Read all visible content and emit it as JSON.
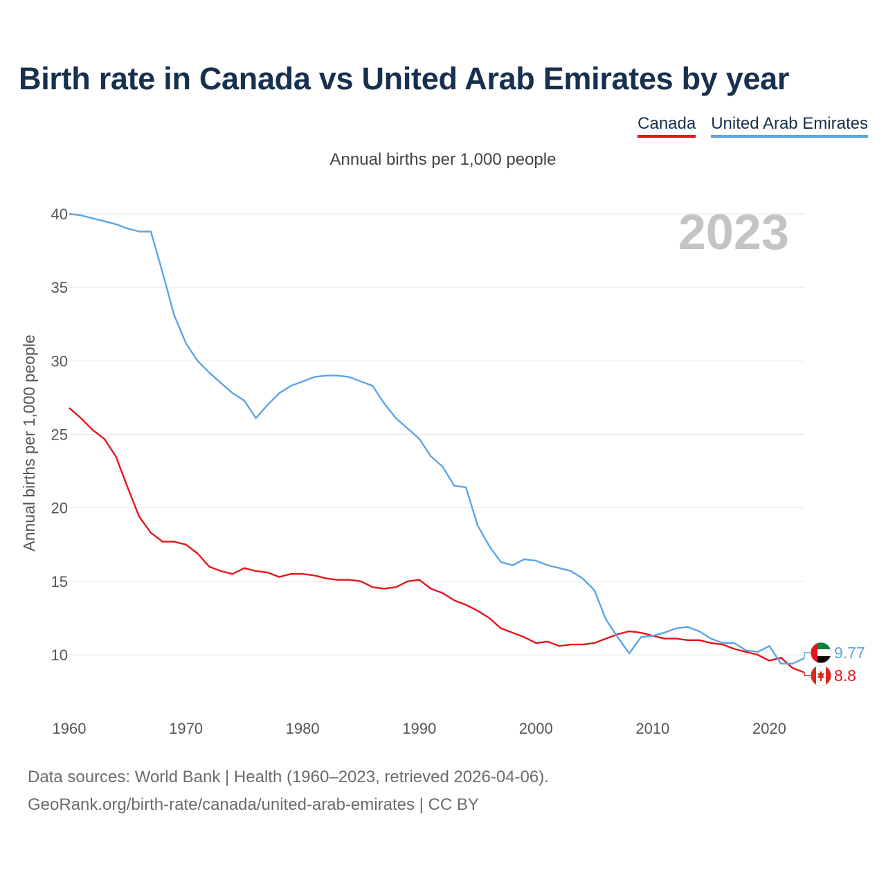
{
  "title": "Birth rate in Canada vs United Arab Emirates by year",
  "subtitle": "Annual births per 1,000 people",
  "footer": {
    "line1": "Data sources: World Bank | Health (1960–2023, retrieved 2026-04-06).",
    "line2": "GeoRank.org/birth-rate/canada/united-arab-emirates | CC BY"
  },
  "chart_data": {
    "type": "line",
    "title": "Birth rate in Canada vs United Arab Emirates by year",
    "subtitle": "Annual births per 1,000 people",
    "xlabel": "",
    "ylabel": "Annual births per 1,000 people",
    "year_watermark": "2023",
    "xlim": [
      1960,
      2023
    ],
    "ylim": [
      7,
      40
    ],
    "x_ticks": [
      1960,
      1970,
      1980,
      1990,
      2000,
      2010,
      2020
    ],
    "y_ticks": [
      10,
      15,
      20,
      25,
      30,
      35,
      40
    ],
    "grid": true,
    "legend_position": "top-right",
    "x": [
      1960,
      1961,
      1962,
      1963,
      1964,
      1965,
      1966,
      1967,
      1968,
      1969,
      1970,
      1971,
      1972,
      1973,
      1974,
      1975,
      1976,
      1977,
      1978,
      1979,
      1980,
      1981,
      1982,
      1983,
      1984,
      1985,
      1986,
      1987,
      1988,
      1989,
      1990,
      1991,
      1992,
      1993,
      1994,
      1995,
      1996,
      1997,
      1998,
      1999,
      2000,
      2001,
      2002,
      2003,
      2004,
      2005,
      2006,
      2007,
      2008,
      2009,
      2010,
      2011,
      2012,
      2013,
      2014,
      2015,
      2016,
      2017,
      2018,
      2019,
      2020,
      2021,
      2022,
      2023
    ],
    "series": [
      {
        "name": "Canada",
        "color": "#e8141b",
        "end_label": "8.8",
        "values": [
          26.8,
          26.1,
          25.3,
          24.7,
          23.5,
          21.4,
          19.4,
          18.3,
          17.7,
          17.7,
          17.5,
          16.9,
          16.0,
          15.7,
          15.5,
          15.9,
          15.7,
          15.6,
          15.3,
          15.5,
          15.5,
          15.4,
          15.2,
          15.1,
          15.1,
          15.0,
          14.6,
          14.5,
          14.6,
          15.0,
          15.1,
          14.5,
          14.2,
          13.7,
          13.4,
          13.0,
          12.5,
          11.8,
          11.5,
          11.2,
          10.8,
          10.9,
          10.6,
          10.7,
          10.7,
          10.8,
          11.1,
          11.4,
          11.6,
          11.5,
          11.3,
          11.1,
          11.1,
          11.0,
          11.0,
          10.8,
          10.7,
          10.4,
          10.2,
          10.0,
          9.6,
          9.8,
          9.1,
          8.8
        ]
      },
      {
        "name": "United Arab Emirates",
        "color": "#5ba4e5",
        "end_label": "9.77",
        "values": [
          40.0,
          39.9,
          39.7,
          39.5,
          39.3,
          39.0,
          38.8,
          38.8,
          36.0,
          33.1,
          31.2,
          30.0,
          29.2,
          28.5,
          27.8,
          27.3,
          26.1,
          27.0,
          27.8,
          28.3,
          28.6,
          28.9,
          29.0,
          29.0,
          28.9,
          28.6,
          28.3,
          27.1,
          26.1,
          25.4,
          24.7,
          23.5,
          22.8,
          21.5,
          21.4,
          18.8,
          17.4,
          16.3,
          16.1,
          16.5,
          16.4,
          16.1,
          15.9,
          15.7,
          15.2,
          14.4,
          12.4,
          11.2,
          10.1,
          11.2,
          11.3,
          11.5,
          11.8,
          11.9,
          11.6,
          11.1,
          10.8,
          10.8,
          10.3,
          10.2,
          10.6,
          9.4,
          9.4,
          9.77
        ]
      }
    ]
  }
}
